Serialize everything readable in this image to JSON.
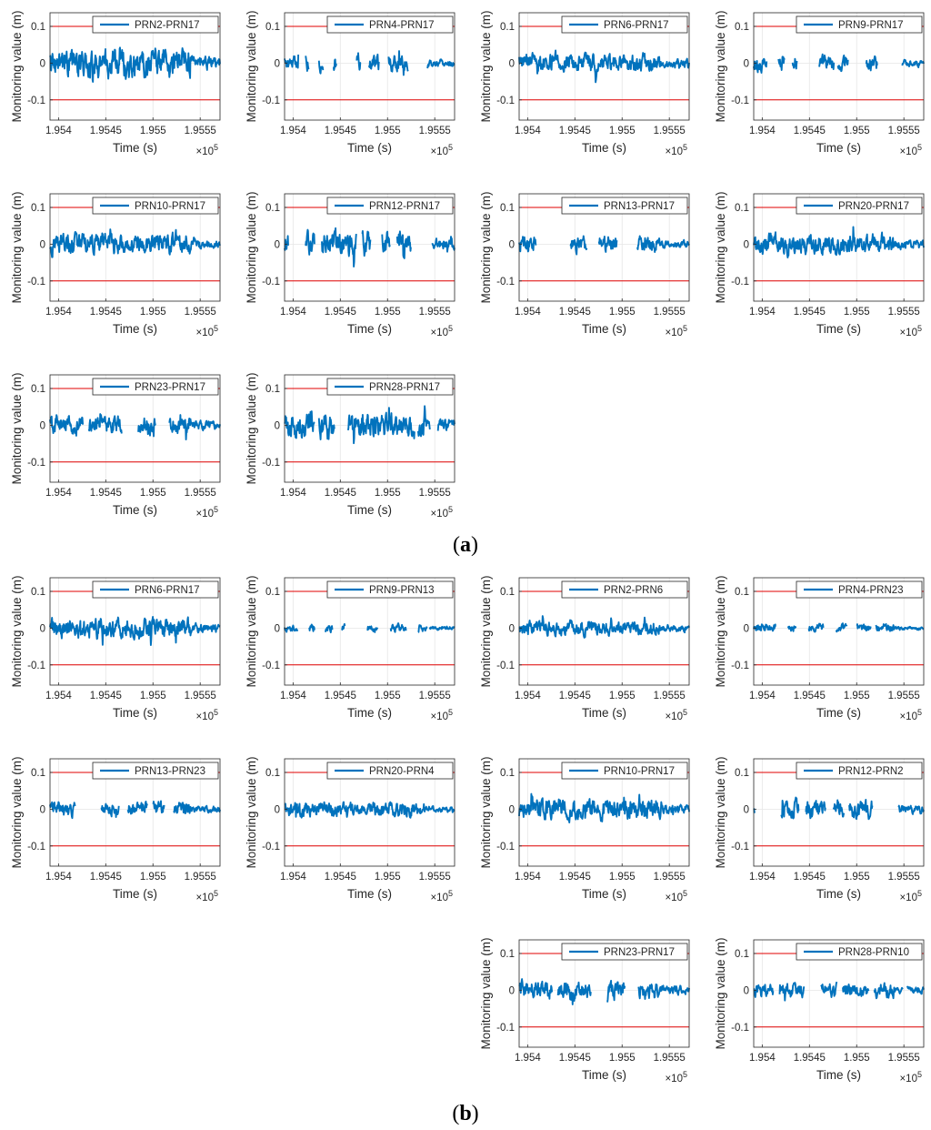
{
  "figure": {
    "panels": [
      {
        "label": "a",
        "open": "(",
        "close": ")"
      },
      {
        "label": "b",
        "open": "(",
        "close": ")"
      }
    ]
  },
  "chart_data": [
    {
      "type": "line",
      "panel": "a",
      "legend": "PRN2-PRN17",
      "amplitude": 0.028,
      "gaps": []
    },
    {
      "type": "line",
      "panel": "a",
      "legend": "PRN4-PRN17",
      "amplitude": 0.016,
      "gaps": [
        [
          195406,
          195413
        ],
        [
          195417,
          195427
        ],
        [
          195432,
          195442
        ],
        [
          195446,
          195467
        ],
        [
          195472,
          195480
        ],
        [
          195491,
          195501
        ],
        [
          195522,
          195542
        ]
      ]
    },
    {
      "type": "line",
      "panel": "a",
      "legend": "PRN6-PRN17",
      "amplitude": 0.018,
      "gaps": []
    },
    {
      "type": "line",
      "panel": "a",
      "legend": "PRN9-PRN17",
      "amplitude": 0.016,
      "gaps": [
        [
          195405,
          195417
        ],
        [
          195424,
          195432
        ],
        [
          195437,
          195460
        ],
        [
          195476,
          195480
        ],
        [
          195491,
          195510
        ],
        [
          195522,
          195548
        ]
      ]
    },
    {
      "type": "line",
      "panel": "a",
      "legend": "PRN10-PRN17",
      "amplitude": 0.02,
      "gaps": []
    },
    {
      "type": "line",
      "panel": "a",
      "legend": "PRN12-PRN17",
      "amplitude": 0.024,
      "gaps": [
        [
          195395,
          195413
        ],
        [
          195423,
          195430
        ],
        [
          195467,
          195473
        ],
        [
          195482,
          195494
        ],
        [
          195503,
          195510
        ],
        [
          195525,
          195547
        ]
      ]
    },
    {
      "type": "line",
      "panel": "a",
      "legend": "PRN13-PRN17",
      "amplitude": 0.016,
      "gaps": [
        [
          195409,
          195445
        ],
        [
          195463,
          195475
        ],
        [
          195495,
          195516
        ]
      ]
    },
    {
      "type": "line",
      "panel": "a",
      "legend": "PRN20-PRN17",
      "amplitude": 0.02,
      "gaps": []
    },
    {
      "type": "line",
      "panel": "a",
      "legend": "PRN23-PRN17",
      "amplitude": 0.018,
      "gaps": [
        [
          195426,
          195432
        ],
        [
          195467,
          195484
        ],
        [
          195503,
          195517
        ]
      ]
    },
    {
      "type": "line",
      "panel": "a",
      "legend": "PRN28-PRN17",
      "amplitude": 0.026,
      "gaps": [
        [
          195423,
          195427
        ],
        [
          195444,
          195458
        ],
        [
          195529,
          195532
        ],
        [
          195545,
          195553
        ]
      ]
    },
    {
      "type": "line",
      "panel": "b",
      "legend": "PRN2-PRN6",
      "amplitude": 0.014,
      "gaps": []
    },
    {
      "type": "line",
      "panel": "b",
      "legend": "PRN4-PRN23",
      "amplitude": 0.008,
      "gaps": [
        [
          195415,
          195427
        ],
        [
          195436,
          195449
        ],
        [
          195465,
          195478
        ],
        [
          195490,
          195500
        ],
        [
          195515,
          195520
        ]
      ]
    },
    {
      "type": "line",
      "panel": "b",
      "legend": "PRN6-PRN17",
      "amplitude": 0.02,
      "gaps": []
    },
    {
      "type": "line",
      "panel": "b",
      "legend": "PRN9-PRN13",
      "amplitude": 0.008,
      "gaps": [
        [
          195405,
          195417
        ],
        [
          195423,
          195434
        ],
        [
          195442,
          195451
        ],
        [
          195455,
          195478
        ],
        [
          195490,
          195503
        ],
        [
          195520,
          195532
        ],
        [
          195542,
          195544
        ]
      ]
    },
    {
      "type": "line",
      "panel": "b",
      "legend": "PRN10-PRN17",
      "amplitude": 0.02,
      "gaps": []
    },
    {
      "type": "line",
      "panel": "b",
      "legend": "PRN12-PRN2",
      "amplitude": 0.018,
      "gaps": [
        [
          195392,
          195420
        ],
        [
          195439,
          195446
        ],
        [
          195467,
          195475
        ],
        [
          195487,
          195492
        ],
        [
          195517,
          195544
        ]
      ]
    },
    {
      "type": "line",
      "panel": "b",
      "legend": "PRN13-PRN23",
      "amplitude": 0.014,
      "gaps": [
        [
          195418,
          195445
        ],
        [
          195464,
          195473
        ],
        [
          195494,
          195500
        ],
        [
          195512,
          195522
        ]
      ]
    },
    {
      "type": "line",
      "panel": "b",
      "legend": "PRN20-PRN4",
      "amplitude": 0.014,
      "gaps": []
    },
    {
      "type": "line",
      "panel": "b",
      "legend": "PRN23-PRN17",
      "amplitude": 0.018,
      "gaps": [
        [
          195426,
          195432
        ],
        [
          195467,
          195484
        ],
        [
          195503,
          195517
        ]
      ]
    },
    {
      "type": "line",
      "panel": "b",
      "legend": "PRN28-PRN10",
      "amplitude": 0.014,
      "gaps": [
        [
          195412,
          195418
        ],
        [
          195445,
          195462
        ],
        [
          195479,
          195485
        ],
        [
          195513,
          195518
        ],
        [
          195549,
          195553
        ]
      ]
    }
  ],
  "axes": {
    "xlabel": "Time (s)",
    "ylabel": "Monitoring value (m)",
    "x_multiplier": "×10",
    "x_multiplier_exp": "5",
    "xlim": [
      195391,
      195571
    ],
    "ylim": [
      -0.155,
      0.137
    ],
    "x_ticks": [
      {
        "value": 195400,
        "label": "1.954"
      },
      {
        "value": 195450,
        "label": "1.9545"
      },
      {
        "value": 195500,
        "label": "1.955"
      },
      {
        "value": 195550,
        "label": "1.9555"
      }
    ],
    "y_ticks": [
      {
        "value": 0.1,
        "label": "0.1"
      },
      {
        "value": 0,
        "label": "0"
      },
      {
        "value": -0.1,
        "label": "-0.1"
      }
    ],
    "threshold_upper": 0.1,
    "threshold_lower": -0.1
  },
  "colors": {
    "series": "#0072BD",
    "threshold": "#e00000",
    "grid": "#e6e6e6",
    "axis": "#262626"
  }
}
